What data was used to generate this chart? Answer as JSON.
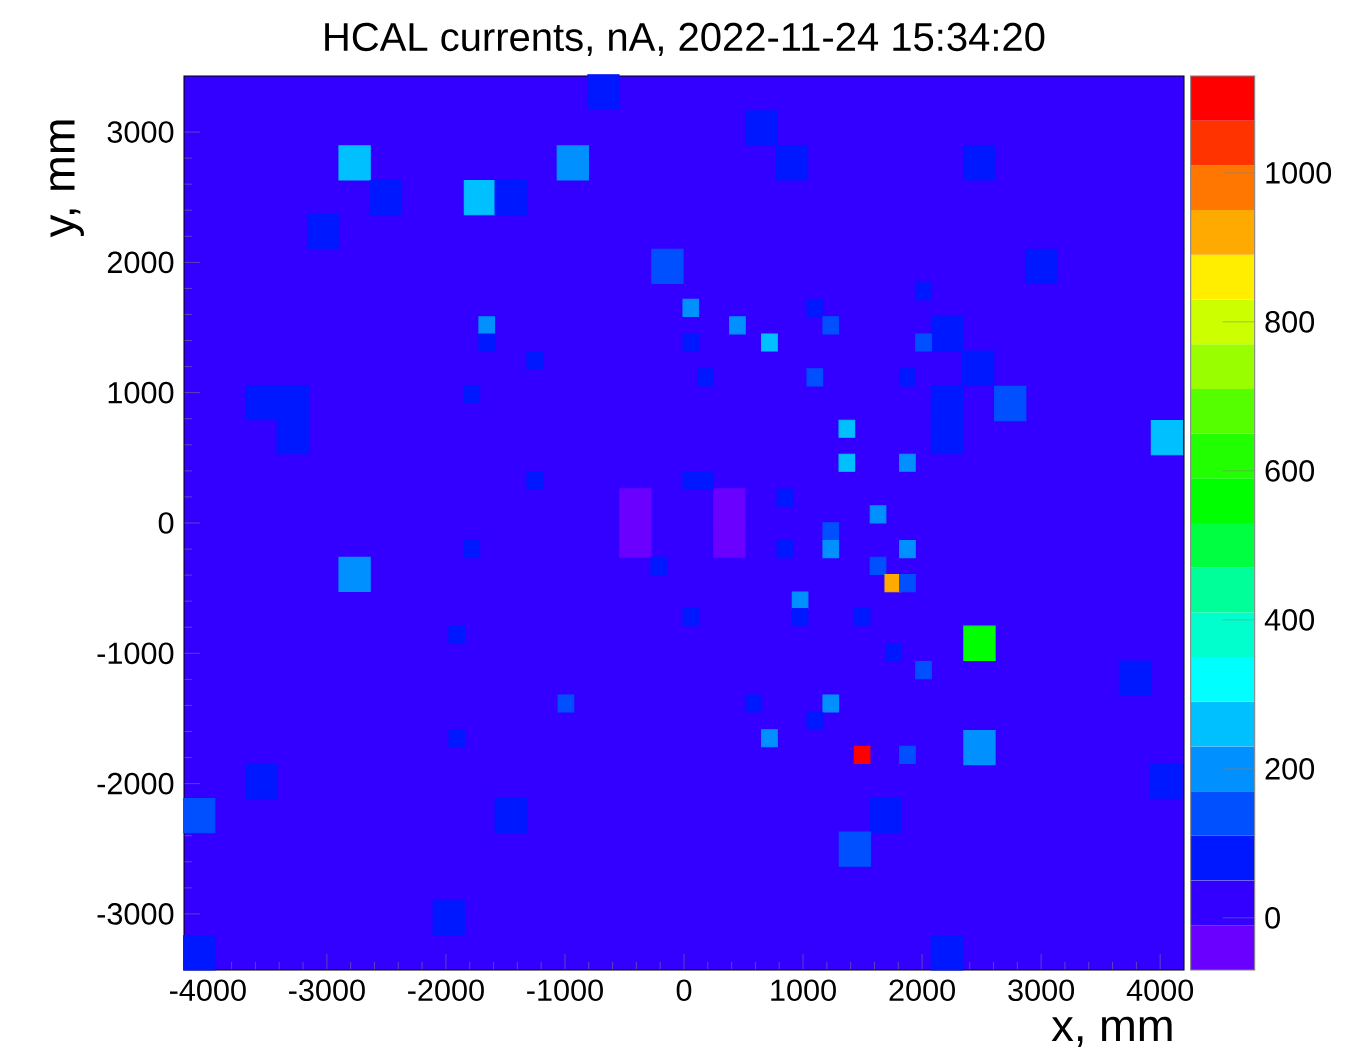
{
  "chart_data": {
    "type": "bubble",
    "title": "HCAL currents, nA, 2022-11-24 15:34:20",
    "xlabel": "x, mm",
    "ylabel": "y, mm",
    "marker": "square",
    "xlim": [
      -4200,
      4200
    ],
    "ylim": [
      -3430,
      3430
    ],
    "xticks": [
      -4000,
      -3000,
      -2000,
      -1000,
      0,
      1000,
      2000,
      3000,
      4000
    ],
    "yticks": [
      -3000,
      -2000,
      -1000,
      0,
      1000,
      2000,
      3000
    ],
    "clim": [
      -70,
      1130
    ],
    "cticks": [
      0,
      200,
      400,
      600,
      800,
      1000
    ],
    "bands": [
      {
        "axis": "y",
        "from": -3430,
        "to": 3430,
        "color": "#3300ff"
      }
    ],
    "x": [
      -677,
      -2767,
      -934,
      -2504,
      -1714,
      -1456,
      -3030,
      -139,
      -3551,
      -3287,
      -3287,
      -408,
      -408,
      381,
      381,
      650,
      908,
      2482,
      3003,
      2208,
      2471,
      2740,
      2208,
      2208,
      4057,
      2482,
      3788,
      2482,
      4050,
      1692,
      1435,
      2208,
      -2767,
      -3551,
      -4072,
      -1456,
      -1976,
      -4072,
      57,
      -1657,
      -1657,
      57,
      -1254,
      -1782,
      -1254,
      57,
      180,
      2012,
      1099,
      449,
      1233,
      718,
      2012,
      180,
      1099,
      1877,
      1368,
      1368,
      1877,
      847,
      1630,
      1233,
      847,
      1233,
      1877,
      1630,
      1754,
      1877,
      975,
      57,
      975,
      1496,
      1760,
      2012,
      583,
      1233,
      1099,
      718,
      1496,
      1877,
      -1782,
      -212,
      -1909,
      -992,
      -1909
    ],
    "values": [
      3308,
      2763,
      2763,
      2497,
      2497,
      2497,
      2235,
      1969,
      923,
      923,
      662,
      131,
      -131,
      131,
      -131,
      3031,
      2763,
      2763,
      1969,
      1451,
      1189,
      917,
      917,
      662,
      655,
      -923,
      -1191,
      -1723,
      -1980,
      -2246,
      -2503,
      -3298,
      -395,
      -1985,
      -2246,
      -2246,
      -3031,
      -3298,
      1651,
      1517,
      1385,
      1385,
      1246,
      989,
      323,
      323,
      323,
      1778,
      1651,
      1517,
      1517,
      1385,
      1385,
      1117,
      1117,
      1117,
      723,
      462,
      462,
      194,
      66,
      -65,
      -200,
      -200,
      -200,
      -329,
      -462,
      -462,
      -595,
      -723,
      -723,
      -723,
      -995,
      -1129,
      -1385,
      -1385,
      -1518,
      -1652,
      -1780,
      -1780,
      -200,
      -329,
      -857,
      -1385,
      -1652
    ],
    "sizes": [
      1,
      1,
      1,
      1,
      1,
      1,
      1,
      1,
      1,
      1,
      1,
      1,
      1,
      1,
      1,
      1,
      1,
      1,
      1,
      1,
      1,
      1,
      1,
      1,
      1,
      1,
      1,
      1,
      1,
      1,
      1,
      1,
      1,
      1,
      1,
      1,
      1,
      1,
      0.25,
      0.25,
      0.25,
      0.25,
      0.25,
      0.25,
      0.25,
      0.25,
      0.25,
      0.25,
      0.25,
      0.25,
      0.25,
      0.25,
      0.25,
      0.25,
      0.25,
      0.25,
      0.25,
      0.25,
      0.25,
      0.25,
      0.25,
      0.25,
      0.25,
      0.25,
      0.25,
      0.25,
      0.25,
      0.25,
      0.25,
      0.25,
      0.25,
      0.25,
      0.25,
      0.25,
      0.25,
      0.25,
      0.25,
      0.25,
      0.25,
      0.25,
      0.25,
      0.25,
      0.25,
      0.25,
      0.25
    ],
    "cvalues": [
      80,
      260,
      200,
      80,
      260,
      80,
      80,
      140,
      80,
      80,
      80,
      -40,
      -40,
      -40,
      -40,
      80,
      80,
      80,
      80,
      80,
      80,
      140,
      80,
      80,
      260,
      560,
      80,
      200,
      80,
      80,
      140,
      80,
      200,
      80,
      140,
      80,
      80,
      80,
      200,
      200,
      80,
      80,
      80,
      80,
      80,
      80,
      80,
      80,
      80,
      200,
      140,
      260,
      140,
      80,
      140,
      80,
      260,
      260,
      200,
      80,
      200,
      140,
      80,
      200,
      200,
      140,
      920,
      140,
      200,
      80,
      80,
      80,
      80,
      140,
      80,
      200,
      80,
      200,
      1100,
      140,
      80,
      80,
      80,
      140,
      80
    ]
  }
}
